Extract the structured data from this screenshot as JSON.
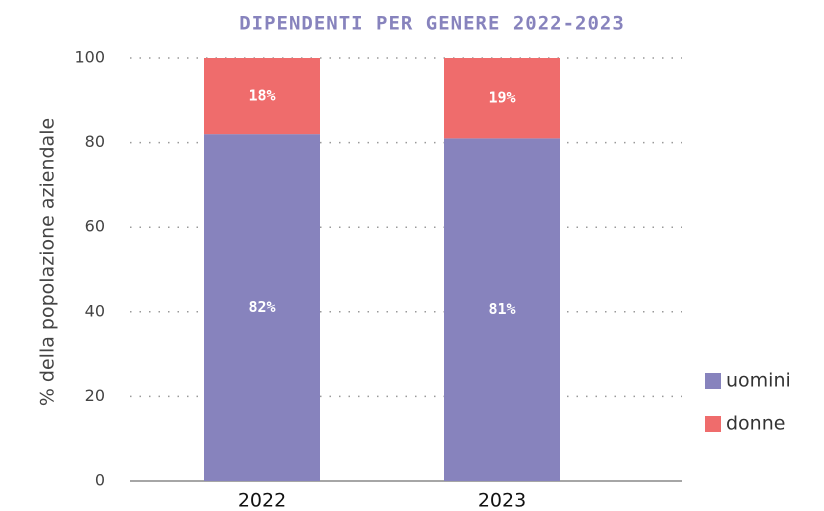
{
  "chart_data": {
    "type": "stacked_bar",
    "title": "DIPENDENTI PER GENERE 2022-2023",
    "y_label": "% della popolazione aziendale",
    "categories": [
      "2022",
      "2023"
    ],
    "series": [
      {
        "name": "uomini",
        "color": "#8783bd",
        "values": [
          82,
          81
        ],
        "value_labels": [
          "82%",
          "81%"
        ]
      },
      {
        "name": "donne",
        "color": "#ef6c6c",
        "values": [
          18,
          19
        ],
        "value_labels": [
          "18%",
          "19%"
        ]
      }
    ],
    "ylim": [
      0,
      100
    ],
    "yticks": [
      0,
      20,
      40,
      60,
      80,
      100
    ],
    "grid": true,
    "legend": "right"
  }
}
